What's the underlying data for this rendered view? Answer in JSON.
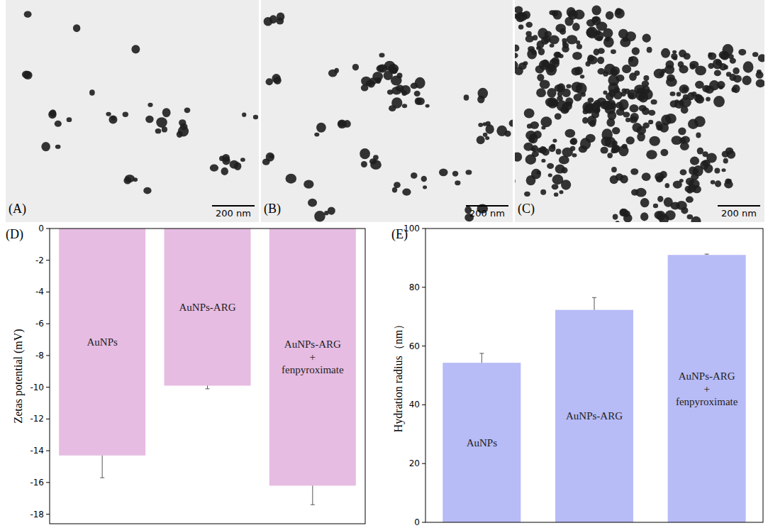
{
  "images": [
    {
      "label": "(A)",
      "scale_bar": "200 nm"
    },
    {
      "label": "(B)",
      "scale_bar": "200 nm"
    },
    {
      "label": "(C)",
      "scale_bar": "200 nm"
    }
  ],
  "chart_data": [
    {
      "type": "bar",
      "panel": "(D)",
      "y_label": "Zetas  potential  (mV)",
      "categories": [
        "AuNPs",
        "AuNPs-ARG",
        "AuNPs-ARG\n+\nfenpyroximate"
      ],
      "values": [
        -14.3,
        -9.9,
        -16.2
      ],
      "errors": [
        1.4,
        0.2,
        1.2
      ],
      "color": "#e6bce2",
      "ylim": [
        -18.6,
        0
      ],
      "yticks": [
        0,
        -2,
        -4,
        -6,
        -8,
        -10,
        -12,
        -14,
        -16,
        -18
      ],
      "tick_labels": "y",
      "grid": false
    },
    {
      "type": "bar",
      "panel": "(E)",
      "y_label": "Hydration radius（nm）",
      "categories": [
        "AuNPs",
        "AuNPs-ARG",
        "AuNPs-ARG\n+\nfenpyroximate"
      ],
      "values": [
        54.3,
        72.3,
        91.0
      ],
      "errors": [
        3.2,
        4.2,
        0.3
      ],
      "color": "#b7bbf6",
      "ylim": [
        0,
        100
      ],
      "yticks": [
        0,
        20,
        40,
        60,
        80,
        100
      ],
      "tick_labels": "y",
      "grid": false
    }
  ]
}
